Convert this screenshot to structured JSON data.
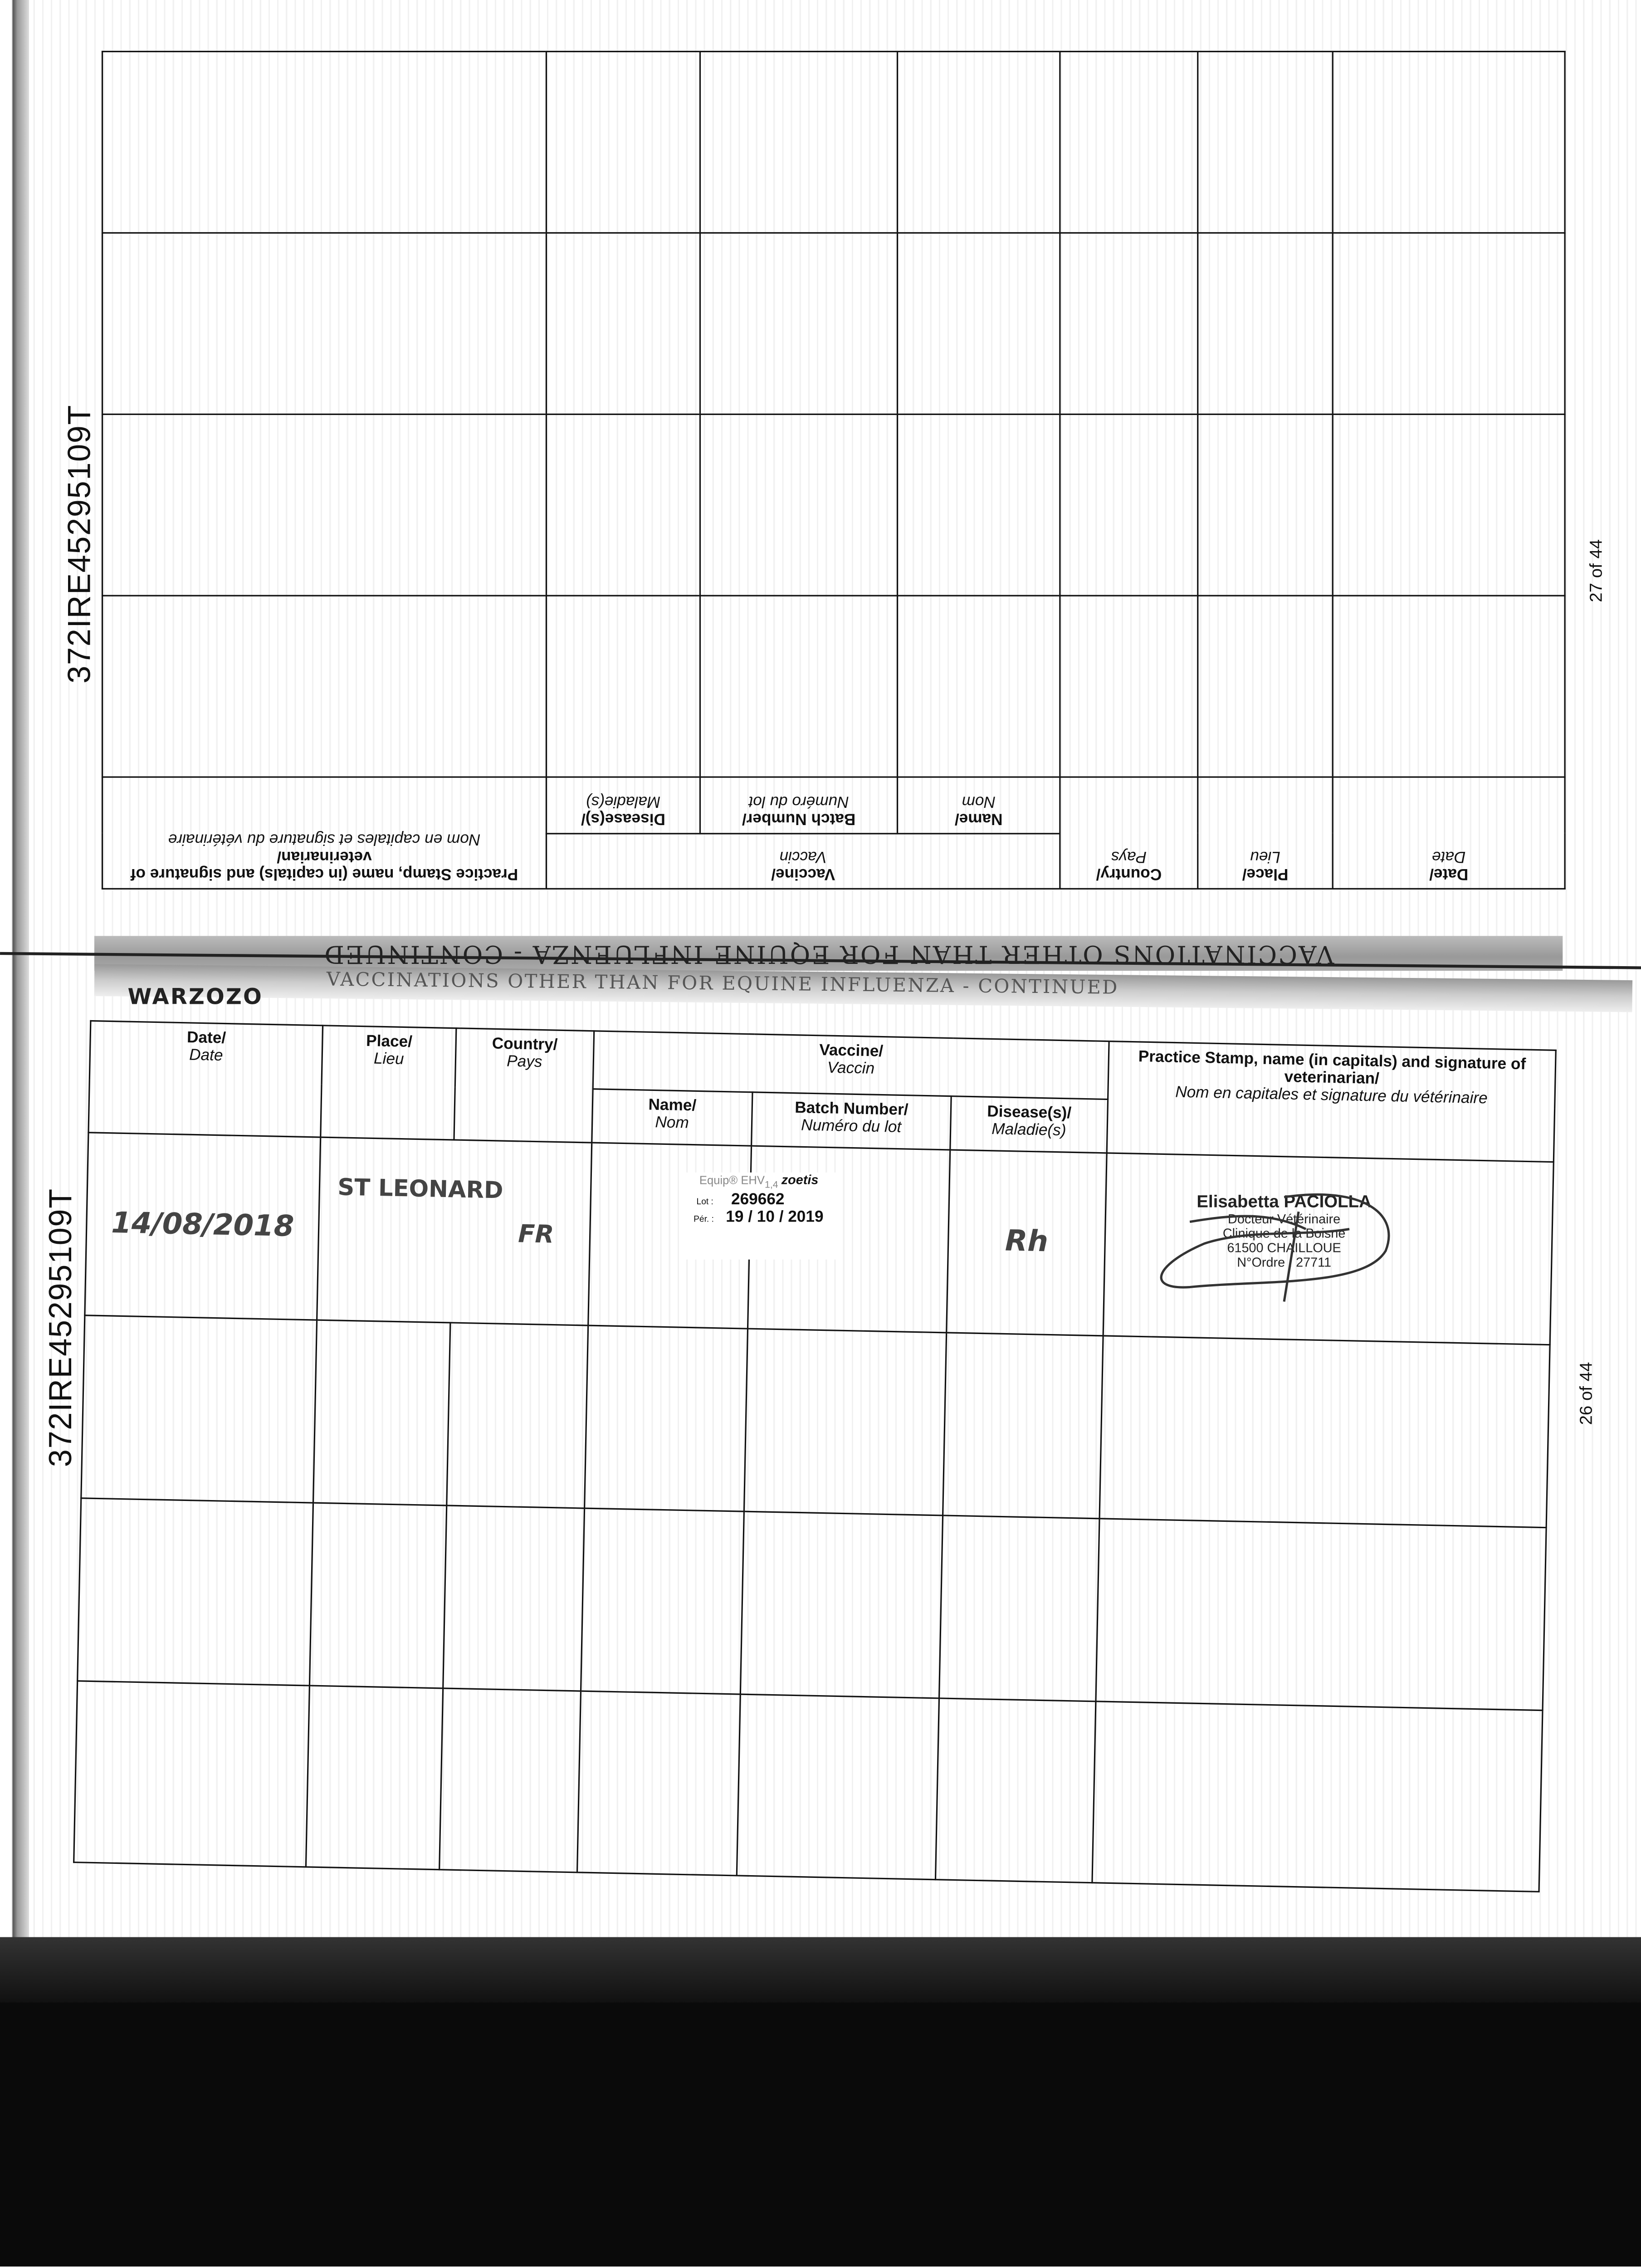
{
  "columns": {
    "date": {
      "en": "Date/",
      "fr": "Date"
    },
    "place": {
      "en": "Place/",
      "fr": "Lieu"
    },
    "country": {
      "en": "Country/",
      "fr": "Pays"
    },
    "vaccine": {
      "en": "Vaccine/",
      "fr": "Vaccin"
    },
    "name": {
      "en": "Name/",
      "fr": "Nom"
    },
    "batch": {
      "en": "Batch Number/",
      "fr": "Numéro du lot"
    },
    "disease": {
      "en": "Disease(s)/",
      "fr": "Maladie(s)"
    },
    "practice": {
      "en": "Practice Stamp, name (in capitals) and signature of veterinarian/",
      "fr": "Nom en capitales et signature du vétérinaire"
    }
  },
  "top_page": {
    "passport_number": "372IRE45295109T",
    "page_number": "27 of 44",
    "section_title": "VACCINATIONS OTHER THAN FOR EQUINE INFLUENZA - CONTINUED"
  },
  "bottom_page": {
    "passport_number": "372IRE45295109T",
    "page_number": "26 of 44",
    "section_title": "VACCINATIONS OTHER THAN FOR EQUINE INFLUENZA - CONTINUED",
    "handwritten_name": "WARZOZO",
    "entry": {
      "date": "14/08/2018",
      "place": "ST LEONARD",
      "country": "FR",
      "disease": "Rh",
      "sticker": {
        "product": "Equip® EHV",
        "product_sub": "1,4",
        "brand": "zoetis",
        "lot_label": "Lot :",
        "lot": "269662",
        "expiry_label": "Pér. :",
        "expiry": "19 / 10 / 2019"
      },
      "stamp": {
        "name": "Elisabetta PACIOLLA",
        "title": "Docteur Vétérinaire",
        "clinic": "Clinique de la Boisne",
        "address": "61500 CHAILLOUE",
        "order": "N°Ordre : 27711"
      }
    }
  }
}
